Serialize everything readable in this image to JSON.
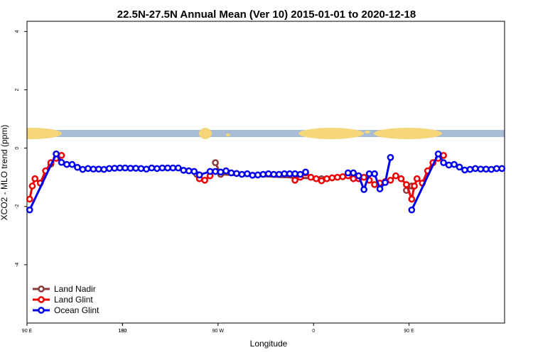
{
  "chart_data": {
    "type": "line",
    "title": "22.5N-27.5N Annual Mean (Ver 10)   2015-01-01 to 2020-12-18",
    "x_label": "Longitude",
    "y_label": "XCO2 - MLO trend (ppm)",
    "xlim": [
      90,
      540
    ],
    "ylim": [
      -6,
      4.35
    ],
    "xticks": [
      {
        "value": 90,
        "label": "90 E"
      },
      180,
      {
        "value": 270,
        "label": "90 W"
      },
      {
        "value": 360,
        "label": "0"
      },
      {
        "value": 450,
        "label": "90 E"
      },
      180
    ],
    "yticks": [
      -4,
      -2,
      0,
      2,
      4
    ],
    "legend": "bottom-left",
    "series": [
      {
        "name": "Land Nadir",
        "color": "#8b3a3a",
        "x": [
          112.5,
          117.5,
          250,
          255,
          267.5,
          272.5,
          367.5,
          372.5,
          447.5,
          452.5
        ],
        "values": [
          -0.55,
          null,
          -0.9,
          null,
          -0.5,
          -0.9,
          -1.05,
          null,
          -1.45,
          -1.3
        ]
      },
      {
        "name": "Land Glint",
        "color": "#ee0000",
        "x": [
          92.5,
          95,
          97.5,
          102.5,
          107.5,
          112.5,
          117.5,
          122.5,
          127.5,
          252.5,
          257.5,
          262.5,
          267.5,
          342.5,
          347.5,
          352.5,
          357.5,
          362.5,
          367.5,
          372.5,
          377.5,
          382.5,
          387.5,
          392.5,
          397.5,
          402.5,
          407.5,
          412.5,
          417.5,
          422.5,
          427.5,
          432.5,
          437.5,
          442.5,
          447.5,
          452.5,
          455,
          457.5,
          462.5,
          467.5,
          472.5,
          477.5,
          482.5
        ],
        "values": [
          -1.75,
          -1.3,
          -1.05,
          -1.2,
          -0.78,
          -0.5,
          -0.35,
          -0.25,
          null,
          -1.05,
          -1.1,
          -0.95,
          null,
          -1.1,
          -1.0,
          -0.85,
          -1.0,
          -1.05,
          -1.12,
          -1.05,
          -1.02,
          -1.0,
          -0.98,
          -0.95,
          -1.05,
          -1.05,
          -1.0,
          -1.1,
          -1.25,
          -1.2,
          -1.15,
          -1.1,
          -0.95,
          -1.05,
          -1.25,
          -1.75,
          -1.3,
          -1.05,
          -1.2,
          -0.78,
          -0.5,
          -0.35,
          -0.25
        ]
      },
      {
        "name": "Ocean Glint",
        "color": "#0000ee",
        "x": [
          92.5,
          117.5,
          122.5,
          127.5,
          132.5,
          137.5,
          142.5,
          147.5,
          152.5,
          157.5,
          162.5,
          167.5,
          172.5,
          177.5,
          182.5,
          187.5,
          192.5,
          197.5,
          202.5,
          207.5,
          212.5,
          217.5,
          222.5,
          227.5,
          232.5,
          237.5,
          242.5,
          247.5,
          252.5,
          262.5,
          267.5,
          272.5,
          277.5,
          282.5,
          287.5,
          292.5,
          297.5,
          302.5,
          307.5,
          312.5,
          317.5,
          322.5,
          327.5,
          332.5,
          337.5,
          342.5,
          347.5,
          352.5,
          372.5,
          392.5,
          397.5,
          402.5,
          407.5,
          412.5,
          417.5,
          422.5,
          427.5,
          432.5,
          442.5,
          452.5,
          477.5,
          482.5,
          487.5,
          492.5,
          497.5,
          502.5,
          507.5,
          512.5,
          517.5,
          522.5,
          527.5,
          532.5,
          537.5
        ],
        "values": [
          -2.12,
          -0.2,
          -0.49,
          -0.56,
          -0.56,
          -0.66,
          -0.73,
          -0.7,
          -0.72,
          -0.72,
          -0.73,
          -0.7,
          -0.69,
          -0.68,
          -0.68,
          -0.69,
          -0.69,
          -0.7,
          -0.72,
          -0.68,
          -0.7,
          -0.68,
          -0.68,
          -0.68,
          -0.68,
          -0.76,
          -0.78,
          -0.8,
          -0.92,
          -0.8,
          -0.8,
          -0.82,
          -0.78,
          -0.85,
          -0.87,
          -0.9,
          -0.88,
          -0.93,
          -0.92,
          -0.9,
          -0.88,
          -0.9,
          -0.9,
          -0.88,
          -0.88,
          -0.88,
          -0.9,
          -0.82,
          null,
          -0.85,
          -0.85,
          -0.95,
          -1.42,
          -0.88,
          -0.88,
          -1.4,
          -1.18,
          -0.32,
          null,
          -2.12,
          -0.2,
          -0.5,
          -0.58,
          -0.56,
          -0.65,
          -0.75,
          -0.73,
          -0.7,
          -0.72,
          -0.72,
          -0.73,
          -0.7,
          -0.7
        ]
      }
    ]
  }
}
